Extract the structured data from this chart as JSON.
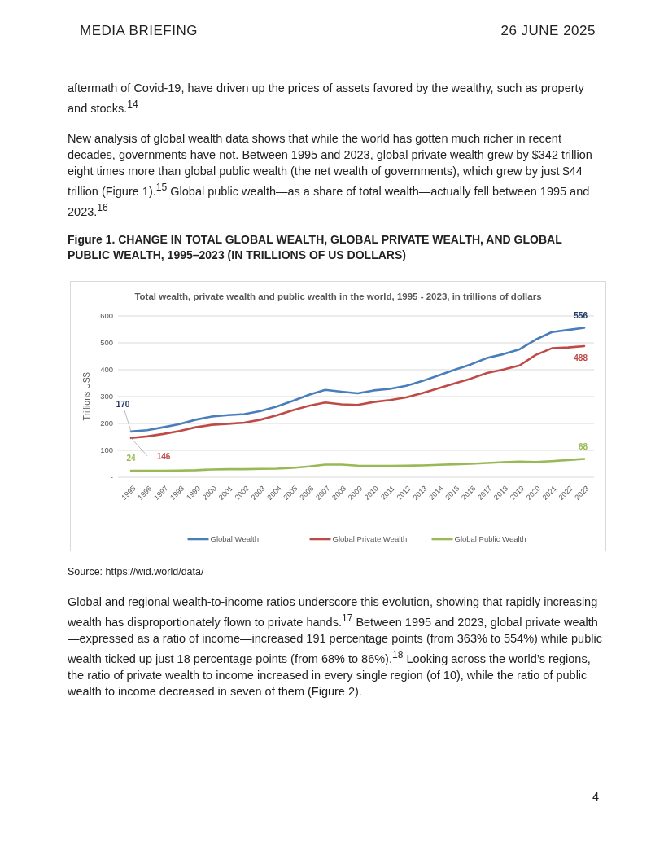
{
  "chart_data": {
    "type": "line",
    "title": "Total wealth, private wealth and public wealth in the world, 1995 - 2023, in trillions of dollars",
    "subtitle": "Figure 1. CHANGE IN TOTAL GLOBAL WEALTH, GLOBAL PRIVATE WEALTH, AND GLOBAL PUBLIC WEALTH, 1995–2023 (IN TRILLIONS OF US DOLLARS)",
    "ylabel": "Trillions US$",
    "categories": [
      "1995",
      "1996",
      "1997",
      "1998",
      "1999",
      "2000",
      "2001",
      "2002",
      "2003",
      "2004",
      "2005",
      "2006",
      "2007",
      "2008",
      "2009",
      "2010",
      "2011",
      "2012",
      "2013",
      "2014",
      "2015",
      "2016",
      "2017",
      "2018",
      "2019",
      "2020",
      "2021",
      "2022",
      "2023"
    ],
    "series": [
      {
        "name": "Global Wealth",
        "color": "#4a7ebb",
        "values": [
          170,
          175,
          186,
          198,
          214,
          226,
          231,
          235,
          246,
          263,
          284,
          307,
          325,
          318,
          312,
          323,
          329,
          340,
          358,
          379,
          400,
          420,
          444,
          458,
          476,
          512,
          540,
          548,
          556
        ],
        "value_labels": [
          "170",
          null,
          null,
          null,
          null,
          null,
          null,
          null,
          null,
          null,
          null,
          null,
          null,
          null,
          null,
          null,
          null,
          null,
          null,
          null,
          null,
          null,
          null,
          null,
          null,
          null,
          null,
          null,
          "556"
        ]
      },
      {
        "name": "Global Private Wealth",
        "color": "#be4b48",
        "values": [
          146,
          152,
          161,
          172,
          186,
          195,
          199,
          203,
          214,
          230,
          249,
          266,
          278,
          271,
          269,
          280,
          287,
          297,
          313,
          331,
          349,
          367,
          388,
          401,
          416,
          455,
          480,
          483,
          488
        ],
        "value_labels": [
          "146",
          null,
          null,
          null,
          null,
          null,
          null,
          null,
          null,
          null,
          null,
          null,
          null,
          null,
          null,
          null,
          null,
          null,
          null,
          null,
          null,
          null,
          null,
          null,
          null,
          null,
          null,
          null,
          "488"
        ]
      },
      {
        "name": "Global Public Wealth",
        "color": "#98b954",
        "values": [
          24,
          24,
          24,
          25,
          26,
          29,
          30,
          30,
          31,
          32,
          35,
          40,
          47,
          47,
          43,
          42,
          42,
          43,
          44,
          46,
          48,
          50,
          53,
          56,
          58,
          57,
          60,
          64,
          68
        ],
        "value_labels": [
          "24",
          null,
          null,
          null,
          null,
          null,
          null,
          null,
          null,
          null,
          null,
          null,
          null,
          null,
          null,
          null,
          null,
          null,
          null,
          null,
          null,
          null,
          null,
          null,
          null,
          null,
          null,
          null,
          "68"
        ]
      }
    ],
    "ylim": [
      0,
      600
    ],
    "yticks": [
      {
        "value": 0,
        "label": "-"
      },
      100,
      200,
      300,
      400,
      500,
      600
    ],
    "grid": "y",
    "legend": "bottom",
    "marker": "none",
    "line_style": "solid",
    "annotations": [
      "MEDIA BRIEFING",
      "26 JUNE 2025",
      "aftermath of Covid-19, have driven up the prices of assets favored by the wealthy, such as property and stocks.$^{14}$",
      "New analysis of global wealth data shows that while the world has gotten much richer in recent decades, governments have not. Between 1995 and 2023, global private wealth grew by $342 trillion—eight times more than global public wealth (the net wealth of governments), which grew by just $44 trillion (Figure 1).$^{15}$ Global public wealth—as a share of total wealth—actually fell between 1995 and 2023.$^{16}$",
      "Source: https://wid.world/data/",
      "Global and regional wealth-to-income ratios underscore this evolution, showing that rapidly increasing wealth has disproportionately flown to private hands.$^{17}$ Between 1995 and 2023, global private wealth—expressed as a ratio of income—increased 191 percentage points (from 363% to 554%) while public wealth ticked up just 18 percentage points (from 68% to 86%).$^{18}$ Looking across the world’s regions, the ratio of private wealth to income increased in every single region (of 10), while the ratio of public wealth to income decreased in seven of them (Figure 2).",
      "4"
    ]
  }
}
